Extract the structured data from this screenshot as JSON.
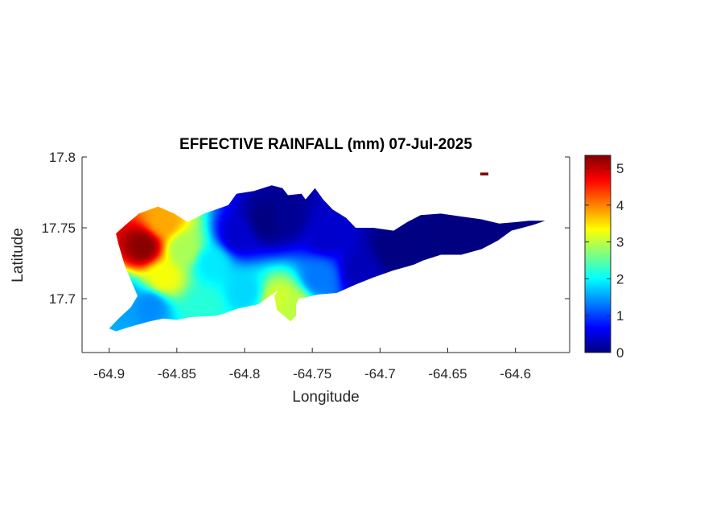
{
  "chart_data": {
    "type": "heatmap",
    "title": "EFFECTIVE RAINFALL (mm) 07-Jul-2025",
    "xlabel": "Longitude",
    "ylabel": "Latitude",
    "xlim": [
      -64.92,
      -64.56
    ],
    "ylim": [
      17.662,
      17.8
    ],
    "xticks": [
      -64.9,
      -64.85,
      -64.8,
      -64.75,
      -64.7,
      -64.65,
      -64.6
    ],
    "xtick_labels": [
      "-64.9",
      "-64.85",
      "-64.8",
      "-64.75",
      "-64.7",
      "-64.65",
      "-64.6"
    ],
    "yticks": [
      17.7,
      17.75,
      17.8
    ],
    "ytick_labels": [
      "17.7",
      "17.75",
      "17.8"
    ],
    "colorbar": {
      "colormap": "jet",
      "range": [
        0,
        5.35
      ],
      "ticks": [
        0,
        1,
        2,
        3,
        4,
        5
      ],
      "tick_labels": [
        "0",
        "1",
        "2",
        "3",
        "4",
        "5"
      ]
    },
    "field_sources": [
      {
        "lon": -64.875,
        "lat": 17.737,
        "value": 5.3
      },
      {
        "lon": -64.86,
        "lat": 17.755,
        "value": 3.8
      },
      {
        "lon": -64.86,
        "lat": 17.715,
        "value": 3.3
      },
      {
        "lon": -64.845,
        "lat": 17.735,
        "value": 2.9
      },
      {
        "lon": -64.89,
        "lat": 17.7,
        "value": 1.5
      },
      {
        "lon": -64.87,
        "lat": 17.695,
        "value": 1.4
      },
      {
        "lon": -64.825,
        "lat": 17.725,
        "value": 1.9
      },
      {
        "lon": -64.805,
        "lat": 17.745,
        "value": 0.4
      },
      {
        "lon": -64.785,
        "lat": 17.755,
        "value": 0.0
      },
      {
        "lon": -64.77,
        "lat": 17.758,
        "value": 0.1
      },
      {
        "lon": -64.775,
        "lat": 17.7,
        "value": 3.1
      },
      {
        "lon": -64.765,
        "lat": 17.695,
        "value": 3.0
      },
      {
        "lon": -64.745,
        "lat": 17.715,
        "value": 1.3
      },
      {
        "lon": -64.74,
        "lat": 17.745,
        "value": 0.4
      },
      {
        "lon": -64.715,
        "lat": 17.72,
        "value": 0.3
      },
      {
        "lon": -64.69,
        "lat": 17.735,
        "value": 0.0
      },
      {
        "lon": -64.65,
        "lat": 17.738,
        "value": 0.0
      },
      {
        "lon": -64.6,
        "lat": 17.75,
        "value": 0.0
      },
      {
        "lon": -64.8,
        "lat": 17.705,
        "value": 1.8
      },
      {
        "lon": -64.83,
        "lat": 17.695,
        "value": 2.2
      }
    ],
    "outline": [
      [
        -64.9,
        17.679
      ],
      [
        -64.893,
        17.686
      ],
      [
        -64.884,
        17.694
      ],
      [
        -64.879,
        17.702
      ],
      [
        -64.883,
        17.711
      ],
      [
        -64.888,
        17.722
      ],
      [
        -64.893,
        17.738
      ],
      [
        -64.895,
        17.746
      ],
      [
        -64.888,
        17.752
      ],
      [
        -64.878,
        17.76
      ],
      [
        -64.864,
        17.765
      ],
      [
        -64.852,
        17.76
      ],
      [
        -64.842,
        17.754
      ],
      [
        -64.83,
        17.76
      ],
      [
        -64.812,
        17.766
      ],
      [
        -64.806,
        17.774
      ],
      [
        -64.793,
        17.776
      ],
      [
        -64.78,
        17.78
      ],
      [
        -64.772,
        17.778
      ],
      [
        -64.768,
        17.773
      ],
      [
        -64.758,
        17.774
      ],
      [
        -64.755,
        17.77
      ],
      [
        -64.748,
        17.778
      ],
      [
        -64.742,
        17.77
      ],
      [
        -64.735,
        17.763
      ],
      [
        -64.725,
        17.757
      ],
      [
        -64.718,
        17.75
      ],
      [
        -64.705,
        17.75
      ],
      [
        -64.69,
        17.748
      ],
      [
        -64.68,
        17.754
      ],
      [
        -64.67,
        17.759
      ],
      [
        -64.655,
        17.76
      ],
      [
        -64.64,
        17.758
      ],
      [
        -64.625,
        17.756
      ],
      [
        -64.612,
        17.753
      ],
      [
        -64.6,
        17.754
      ],
      [
        -64.59,
        17.755
      ],
      [
        -64.578,
        17.755
      ],
      [
        -64.587,
        17.752
      ],
      [
        -64.603,
        17.748
      ],
      [
        -64.613,
        17.741
      ],
      [
        -64.625,
        17.735
      ],
      [
        -64.64,
        17.731
      ],
      [
        -64.655,
        17.731
      ],
      [
        -64.668,
        17.727
      ],
      [
        -64.675,
        17.724
      ],
      [
        -64.69,
        17.72
      ],
      [
        -64.705,
        17.715
      ],
      [
        -64.718,
        17.71
      ],
      [
        -64.732,
        17.704
      ],
      [
        -64.745,
        17.703
      ],
      [
        -64.76,
        17.7
      ],
      [
        -64.762,
        17.696
      ],
      [
        -64.762,
        17.688
      ],
      [
        -64.766,
        17.684
      ],
      [
        -64.776,
        17.692
      ],
      [
        -64.778,
        17.702
      ],
      [
        -64.775,
        17.706
      ],
      [
        -64.79,
        17.696
      ],
      [
        -64.805,
        17.693
      ],
      [
        -64.82,
        17.688
      ],
      [
        -64.84,
        17.687
      ],
      [
        -64.85,
        17.685
      ],
      [
        -64.86,
        17.686
      ],
      [
        -64.87,
        17.684
      ],
      [
        -64.885,
        17.68
      ],
      [
        -64.895,
        17.677
      ]
    ],
    "islet": [
      [
        -64.626,
        17.789
      ],
      [
        -64.62,
        17.789
      ],
      [
        -64.62,
        17.787
      ],
      [
        -64.626,
        17.787
      ]
    ]
  }
}
